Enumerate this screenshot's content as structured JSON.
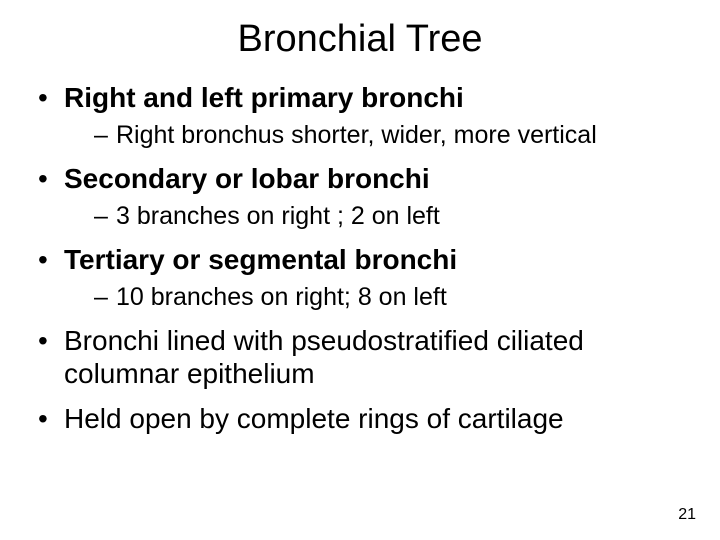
{
  "title": "Bronchial Tree",
  "bullets": [
    {
      "text": "Right and left primary bronchi",
      "bold": true,
      "sub": [
        "Right bronchus shorter, wider, more vertical"
      ]
    },
    {
      "text": "Secondary or lobar bronchi",
      "bold": true,
      "sub": [
        "3 branches on right ; 2 on left"
      ]
    },
    {
      "text": "Tertiary or segmental bronchi",
      "bold": true,
      "sub": [
        "10 branches on right; 8 on left"
      ]
    },
    {
      "text": "Bronchi lined with pseudostratified ciliated columnar epithelium",
      "bold": false,
      "sub": []
    },
    {
      "text": "Held open by complete rings of cartilage",
      "bold": false,
      "sub": []
    }
  ],
  "page_number": "21",
  "style": {
    "background_color": "#ffffff",
    "text_color": "#000000",
    "title_fontsize": 38,
    "level1_fontsize": 28,
    "level2_fontsize": 25,
    "pagenum_fontsize": 16,
    "font_family": "Arial"
  }
}
